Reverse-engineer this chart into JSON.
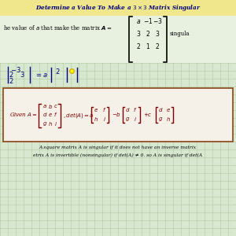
{
  "title": "Determine a Value To Make a 3 × 3 Matrix Singular",
  "title_color": "#000080",
  "title_bg": "#f0e68c",
  "grid_bg": "#d8e8d0",
  "grid_color": "#b0c8a0",
  "bottom_text1": "A square matrix A is singular if it does not have an inverse matrix",
  "bottom_text2": "etrix A is invertible (nonsingular) if det(A) ≠ 0. so A is singular if det(A",
  "handwrite_color": "#000080",
  "box_border": "#8b4513",
  "box_bg": "#f5f0e8"
}
